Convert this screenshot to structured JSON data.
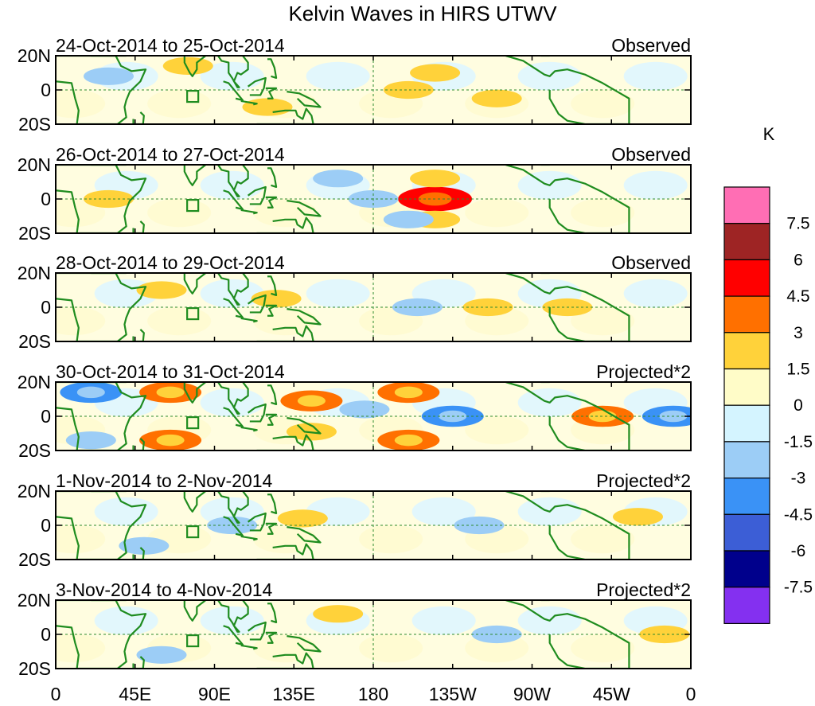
{
  "chart_data": {
    "type": "heatmap",
    "title": "Kelvin Waves in HIRS UTWV",
    "xlabel": "",
    "ylabel": "",
    "units": "K",
    "lat_ticks": [
      "20N",
      "0",
      "20S"
    ],
    "lon_ticks": [
      "0",
      "45E",
      "90E",
      "135E",
      "180",
      "135W",
      "90W",
      "45W",
      "0"
    ],
    "lon_range": [
      0,
      360
    ],
    "lat_range": [
      -20,
      20
    ],
    "panels": [
      {
        "dates": "24-Oct-2014 to 25-Oct-2014",
        "kind": "Observed",
        "anomalies": [
          {
            "lon": 75,
            "lat": 14,
            "value": 1.5
          },
          {
            "lon": 120,
            "lat": -10,
            "value": 1.5
          },
          {
            "lon": 200,
            "lat": 0,
            "value": 1.5
          },
          {
            "lon": 215,
            "lat": 10,
            "value": 1.5
          },
          {
            "lon": 250,
            "lat": -5,
            "value": 1.5
          },
          {
            "lon": 30,
            "lat": 8,
            "value": -1.5
          }
        ]
      },
      {
        "dates": "26-Oct-2014 to 27-Oct-2014",
        "kind": "Observed",
        "anomalies": [
          {
            "lon": 215,
            "lat": 0,
            "value": 4.5
          },
          {
            "lon": 215,
            "lat": 12,
            "value": 1.5
          },
          {
            "lon": 215,
            "lat": -12,
            "value": 1.5
          },
          {
            "lon": 160,
            "lat": 12,
            "value": -1.5
          },
          {
            "lon": 180,
            "lat": 0,
            "value": -1.5
          },
          {
            "lon": 200,
            "lat": -12,
            "value": -1.5
          },
          {
            "lon": 30,
            "lat": 0,
            "value": 1.5
          }
        ]
      },
      {
        "dates": "28-Oct-2014 to 29-Oct-2014",
        "kind": "Observed",
        "anomalies": [
          {
            "lon": 245,
            "lat": 0,
            "value": 1.5
          },
          {
            "lon": 125,
            "lat": 5,
            "value": 1.5
          },
          {
            "lon": 205,
            "lat": 0,
            "value": -1.5
          },
          {
            "lon": 290,
            "lat": 0,
            "value": 1.5
          },
          {
            "lon": 60,
            "lat": 10,
            "value": 1.5
          }
        ]
      },
      {
        "dates": "30-Oct-2014 to 31-Oct-2014",
        "kind": "Projected*2",
        "anomalies": [
          {
            "lon": 65,
            "lat": 14,
            "value": 3
          },
          {
            "lon": 65,
            "lat": -14,
            "value": 3
          },
          {
            "lon": 145,
            "lat": 9,
            "value": 3
          },
          {
            "lon": 145,
            "lat": -9,
            "value": 1.5
          },
          {
            "lon": 200,
            "lat": 14,
            "value": 3
          },
          {
            "lon": 200,
            "lat": -14,
            "value": 3
          },
          {
            "lon": 310,
            "lat": 0,
            "value": 3
          },
          {
            "lon": 20,
            "lat": 14,
            "value": -3
          },
          {
            "lon": 20,
            "lat": -14,
            "value": -1.5
          },
          {
            "lon": 225,
            "lat": 0,
            "value": -3
          },
          {
            "lon": 175,
            "lat": 4,
            "value": -1.5
          },
          {
            "lon": 350,
            "lat": 0,
            "value": -3
          }
        ]
      },
      {
        "dates": "1-Nov-2014 to 2-Nov-2014",
        "kind": "Projected*2",
        "anomalies": [
          {
            "lon": 330,
            "lat": 5,
            "value": 1.5
          },
          {
            "lon": 140,
            "lat": 4,
            "value": 1.5
          },
          {
            "lon": 240,
            "lat": 0,
            "value": -1.5
          },
          {
            "lon": 50,
            "lat": -12,
            "value": -1.5
          },
          {
            "lon": 100,
            "lat": 0,
            "value": -1.5
          }
        ]
      },
      {
        "dates": "3-Nov-2014 to 4-Nov-2014",
        "kind": "Projected*2",
        "anomalies": [
          {
            "lon": 345,
            "lat": 0,
            "value": 1.5
          },
          {
            "lon": 160,
            "lat": 12,
            "value": 1.5
          },
          {
            "lon": 250,
            "lat": 0,
            "value": -1.5
          },
          {
            "lon": 60,
            "lat": -12,
            "value": -1.5
          }
        ]
      }
    ],
    "colorbar": {
      "labels": [
        "7.5",
        "6",
        "4.5",
        "3",
        "1.5",
        "0",
        "-1.5",
        "-3",
        "-4.5",
        "-6",
        "-7.5"
      ],
      "colors": [
        "#ff6eb4",
        "#9e2424",
        "#ff0000",
        "#ff7000",
        "#ffd23a",
        "#fffcc8",
        "#d4f4ff",
        "#9ccdf6",
        "#3a92f6",
        "#3c5ed6",
        "#00008c",
        "#8430f0"
      ]
    }
  }
}
